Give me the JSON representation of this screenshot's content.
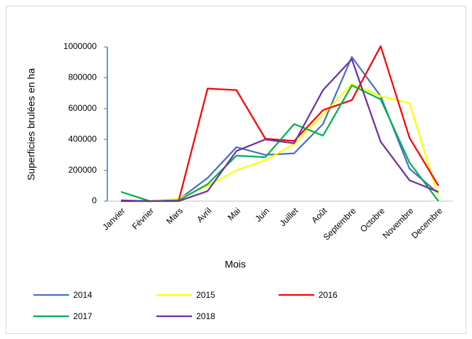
{
  "chart_data": {
    "type": "line",
    "x_label": "Mois",
    "y_label": "Superficies brulées en ha",
    "categories": [
      "Janvier",
      "Février",
      "Mars",
      "Avril",
      "Mai",
      "Juin",
      "Juillet",
      "Août",
      "Septembre",
      "Octobre",
      "Novembre",
      "Decembre"
    ],
    "series": [
      {
        "name": "2014",
        "color": "#4472c4",
        "values": [
          2000,
          0,
          10000,
          150000,
          350000,
          300000,
          310000,
          500000,
          935000,
          680000,
          210000,
          50000
        ]
      },
      {
        "name": "2015",
        "color": "#ffff00",
        "values": [
          0,
          0,
          15000,
          100000,
          200000,
          265000,
          370000,
          560000,
          760000,
          680000,
          635000,
          30000
        ]
      },
      {
        "name": "2016",
        "color": "#ff0000",
        "values": [
          0,
          0,
          5000,
          730000,
          720000,
          405000,
          390000,
          590000,
          655000,
          1005000,
          410000,
          100000
        ]
      },
      {
        "name": "2017",
        "color": "#00b050",
        "values": [
          60000,
          0,
          5000,
          110000,
          295000,
          285000,
          500000,
          425000,
          750000,
          660000,
          250000,
          0
        ]
      },
      {
        "name": "2018",
        "color": "#7030a0",
        "values": [
          5000,
          0,
          0,
          65000,
          325000,
          400000,
          375000,
          720000,
          920000,
          385000,
          135000,
          60000
        ]
      }
    ],
    "ylim": [
      0,
      1000000
    ],
    "yticks": [
      0,
      200000,
      400000,
      600000,
      800000,
      1000000
    ],
    "grid": false,
    "legend": "bottom"
  }
}
